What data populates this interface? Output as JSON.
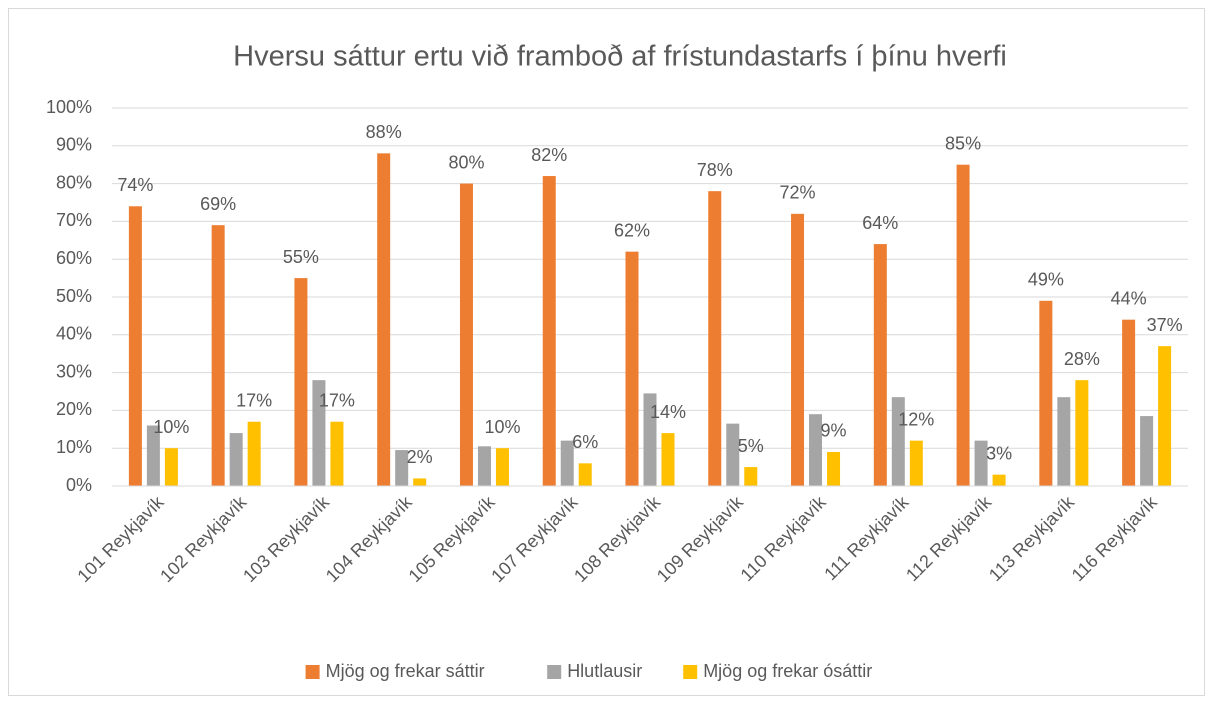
{
  "chart_data": {
    "type": "bar",
    "title": "Hversu sáttur ertu við framboð af frístundastarfs í þínu hverfi",
    "categories": [
      "101 Reykjavík",
      "102 Reykjavík",
      "103 Reykjavík",
      "104 Reykjavík",
      "105 Reykjavík",
      "107 Reykjavík",
      "108 Reykjavík",
      "109 Reykjavík",
      "110 Reykjavík",
      "111 Reykjavík",
      "112 Reykjavík",
      "113 Reykjavík",
      "116 Reykjavík"
    ],
    "series": [
      {
        "name": "Mjög og frekar sáttir",
        "color": "#ed7d31",
        "values": [
          74,
          69,
          55,
          88,
          80,
          82,
          62,
          78,
          72,
          64,
          85,
          49,
          44
        ],
        "value_labels": [
          "74%",
          "69%",
          "55%",
          "88%",
          "80%",
          "82%",
          "62%",
          "78%",
          "72%",
          "64%",
          "85%",
          "49%",
          "44%"
        ]
      },
      {
        "name": "Hlutlausir",
        "color": "#a5a5a5",
        "values": [
          16,
          14,
          28,
          9.5,
          10.5,
          12,
          24.5,
          16.5,
          19,
          23.5,
          12,
          23.5,
          18.5
        ]
      },
      {
        "name": "Mjög og frekar ósáttir",
        "color": "#ffc000",
        "values": [
          10,
          17,
          17,
          2,
          10,
          6,
          14,
          5,
          9,
          12,
          3,
          28,
          37
        ],
        "value_labels": [
          "10%",
          "17%",
          "17%",
          "2%",
          "10%",
          "6%",
          "14%",
          "5%",
          "9%",
          "12%",
          "3%",
          "28%",
          "37%"
        ]
      }
    ],
    "ylim": [
      0,
      100
    ],
    "yticks": [
      {
        "value": 0,
        "label": "0%"
      },
      {
        "value": 10,
        "label": "10%"
      },
      {
        "value": 20,
        "label": "20%"
      },
      {
        "value": 30,
        "label": "30%"
      },
      {
        "value": 40,
        "label": "40%"
      },
      {
        "value": 50,
        "label": "50%"
      },
      {
        "value": 60,
        "label": "60%"
      },
      {
        "value": 70,
        "label": "70%"
      },
      {
        "value": 80,
        "label": "80%"
      },
      {
        "value": 90,
        "label": "90%"
      },
      {
        "value": 100,
        "label": "100%"
      }
    ],
    "grid": true,
    "legend": "bottom"
  }
}
